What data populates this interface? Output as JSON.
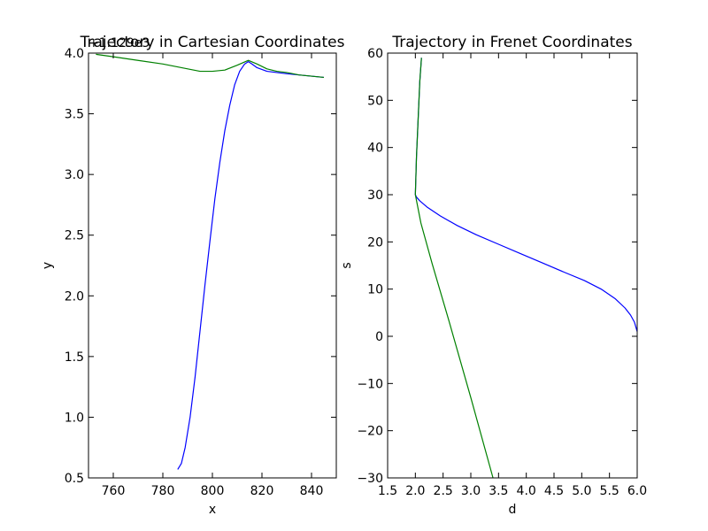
{
  "chart_data": [
    {
      "type": "line",
      "title": "Trajectory in Cartesian Coordinates",
      "xlabel": "x",
      "ylabel": "y",
      "offset_label": "+1.129e3",
      "xlim": [
        750,
        850
      ],
      "ylim": [
        0.5,
        4.0
      ],
      "xticks": [
        760,
        780,
        800,
        820,
        840
      ],
      "yticks": [
        0.5,
        1.0,
        1.5,
        2.0,
        2.5,
        3.0,
        3.5,
        4.0
      ],
      "xtick_labels": [
        "760",
        "780",
        "800",
        "820",
        "840"
      ],
      "ytick_labels": [
        "0.5",
        "1.0",
        "1.5",
        "2.0",
        "2.5",
        "3.0",
        "3.5",
        "4.0"
      ],
      "series": [
        {
          "color": "#0000ff",
          "x": [
            786.0,
            787.5,
            789.0,
            791.0,
            793.0,
            795.0,
            797.0,
            799.0,
            801.0,
            803.0,
            805.0,
            807.0,
            809.0,
            811.0,
            813.0,
            814.5,
            816.0,
            818.0,
            822.0,
            826.0,
            830.0,
            835.0,
            840.0,
            845.0
          ],
          "y": [
            0.57,
            0.62,
            0.75,
            1.0,
            1.33,
            1.71,
            2.09,
            2.45,
            2.8,
            3.1,
            3.36,
            3.57,
            3.74,
            3.85,
            3.91,
            3.93,
            3.91,
            3.88,
            3.85,
            3.84,
            3.83,
            3.82,
            3.81,
            3.8
          ]
        },
        {
          "color": "#008000",
          "x": [
            753,
            760,
            770,
            780,
            790,
            795,
            800,
            805,
            810,
            814.5,
            818,
            822,
            826,
            830,
            835,
            840,
            845
          ],
          "y": [
            3.99,
            3.97,
            3.94,
            3.91,
            3.87,
            3.85,
            3.85,
            3.86,
            3.9,
            3.94,
            3.91,
            3.87,
            3.85,
            3.84,
            3.82,
            3.81,
            3.8
          ]
        }
      ]
    },
    {
      "type": "line",
      "title": "Trajectory in Frenet Coordinates",
      "xlabel": "d",
      "ylabel": "s",
      "xlim": [
        1.5,
        6.0
      ],
      "ylim": [
        -30,
        60
      ],
      "xticks": [
        1.5,
        2.0,
        2.5,
        3.0,
        3.5,
        4.0,
        4.5,
        5.0,
        5.5,
        6.0
      ],
      "yticks": [
        -30,
        -20,
        -10,
        0,
        10,
        20,
        30,
        40,
        50,
        60
      ],
      "xtick_labels": [
        "1.5",
        "2.0",
        "2.5",
        "3.0",
        "3.5",
        "4.0",
        "4.5",
        "5.0",
        "5.5",
        "6.0"
      ],
      "ytick_labels": [
        "−30",
        "−20",
        "−10",
        "0",
        "10",
        "20",
        "30",
        "40",
        "50",
        "60"
      ],
      "series": [
        {
          "color": "#0000ff",
          "x": [
            6.0,
            5.95,
            5.88,
            5.78,
            5.6,
            5.35,
            5.05,
            4.7,
            4.3,
            3.9,
            3.5,
            3.1,
            2.75,
            2.45,
            2.22,
            2.08,
            2.02,
            2.0,
            2.02,
            2.05,
            2.08,
            2.11
          ],
          "y": [
            1,
            3,
            4.5,
            6,
            8,
            10,
            11.8,
            13.5,
            15.5,
            17.5,
            19.5,
            21.5,
            23.5,
            25.5,
            27.3,
            28.7,
            29.5,
            30,
            38,
            46,
            54,
            59
          ]
        },
        {
          "color": "#008000",
          "x": [
            3.4,
            3.0,
            2.6,
            2.3,
            2.1,
            2.0,
            2.02,
            2.05,
            2.08,
            2.11
          ],
          "y": [
            -30,
            -13,
            3.5,
            15.5,
            24,
            30,
            38,
            46,
            54,
            59
          ]
        }
      ]
    }
  ]
}
